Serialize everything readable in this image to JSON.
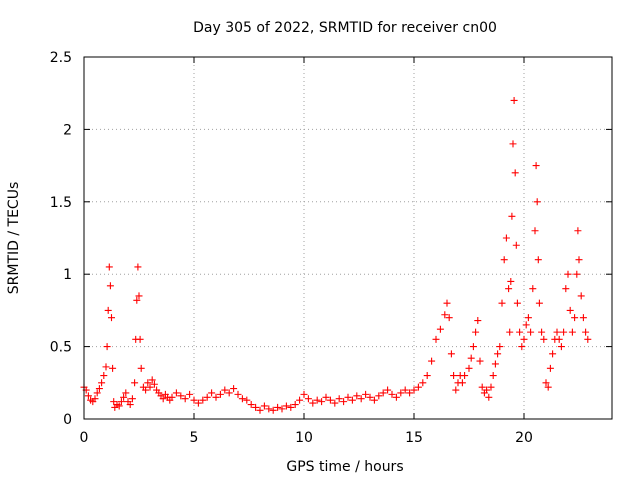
{
  "chart_data": {
    "type": "scatter",
    "title": "Day 305 of 2022, SRMTID for receiver cn00",
    "xlabel": "GPS time / hours",
    "ylabel": "SRMTID / TECUs",
    "xlim": [
      0,
      24
    ],
    "ylim": [
      0,
      2.5
    ],
    "xticks": [
      0,
      5,
      10,
      15,
      20
    ],
    "xtick_labels": [
      "0",
      "5",
      "10",
      "15",
      "20"
    ],
    "yticks": [
      0,
      0.5,
      1,
      1.5,
      2,
      2.5
    ],
    "ytick_labels": [
      "0",
      "0.5",
      "1",
      "1.5",
      "2",
      "2.5"
    ],
    "grid": true,
    "marker": "+",
    "color": "#ff0000",
    "series": [
      {
        "name": "SRMTID",
        "points": [
          [
            0.0,
            0.22
          ],
          [
            0.1,
            0.2
          ],
          [
            0.2,
            0.16
          ],
          [
            0.3,
            0.13
          ],
          [
            0.4,
            0.12
          ],
          [
            0.5,
            0.14
          ],
          [
            0.6,
            0.18
          ],
          [
            0.7,
            0.21
          ],
          [
            0.8,
            0.25
          ],
          [
            0.9,
            0.3
          ],
          [
            1.0,
            0.36
          ],
          [
            1.05,
            0.5
          ],
          [
            1.1,
            0.75
          ],
          [
            1.15,
            1.05
          ],
          [
            1.2,
            0.92
          ],
          [
            1.25,
            0.7
          ],
          [
            1.3,
            0.35
          ],
          [
            1.35,
            0.12
          ],
          [
            1.4,
            0.08
          ],
          [
            1.5,
            0.1
          ],
          [
            1.6,
            0.09
          ],
          [
            1.7,
            0.12
          ],
          [
            1.8,
            0.15
          ],
          [
            1.9,
            0.18
          ],
          [
            2.0,
            0.12
          ],
          [
            2.1,
            0.1
          ],
          [
            2.2,
            0.14
          ],
          [
            2.3,
            0.25
          ],
          [
            2.35,
            0.55
          ],
          [
            2.4,
            0.82
          ],
          [
            2.45,
            1.05
          ],
          [
            2.5,
            0.85
          ],
          [
            2.55,
            0.55
          ],
          [
            2.6,
            0.35
          ],
          [
            2.7,
            0.22
          ],
          [
            2.8,
            0.2
          ],
          [
            2.9,
            0.25
          ],
          [
            3.0,
            0.22
          ],
          [
            3.1,
            0.27
          ],
          [
            3.2,
            0.24
          ],
          [
            3.3,
            0.2
          ],
          [
            3.4,
            0.18
          ],
          [
            3.5,
            0.16
          ],
          [
            3.6,
            0.14
          ],
          [
            3.7,
            0.17
          ],
          [
            3.8,
            0.15
          ],
          [
            3.9,
            0.13
          ],
          [
            4.0,
            0.15
          ],
          [
            4.2,
            0.18
          ],
          [
            4.4,
            0.16
          ],
          [
            4.6,
            0.14
          ],
          [
            4.8,
            0.17
          ],
          [
            5.0,
            0.13
          ],
          [
            5.2,
            0.11
          ],
          [
            5.4,
            0.13
          ],
          [
            5.6,
            0.15
          ],
          [
            5.8,
            0.18
          ],
          [
            6.0,
            0.15
          ],
          [
            6.2,
            0.17
          ],
          [
            6.4,
            0.2
          ],
          [
            6.6,
            0.18
          ],
          [
            6.8,
            0.21
          ],
          [
            7.0,
            0.17
          ],
          [
            7.2,
            0.14
          ],
          [
            7.4,
            0.13
          ],
          [
            7.6,
            0.1
          ],
          [
            7.8,
            0.08
          ],
          [
            8.0,
            0.06
          ],
          [
            8.2,
            0.09
          ],
          [
            8.4,
            0.07
          ],
          [
            8.6,
            0.06
          ],
          [
            8.8,
            0.08
          ],
          [
            9.0,
            0.07
          ],
          [
            9.2,
            0.09
          ],
          [
            9.4,
            0.08
          ],
          [
            9.6,
            0.1
          ],
          [
            9.8,
            0.13
          ],
          [
            10.0,
            0.17
          ],
          [
            10.2,
            0.14
          ],
          [
            10.4,
            0.11
          ],
          [
            10.6,
            0.13
          ],
          [
            10.8,
            0.12
          ],
          [
            11.0,
            0.15
          ],
          [
            11.2,
            0.13
          ],
          [
            11.4,
            0.11
          ],
          [
            11.6,
            0.14
          ],
          [
            11.8,
            0.12
          ],
          [
            12.0,
            0.15
          ],
          [
            12.2,
            0.13
          ],
          [
            12.4,
            0.16
          ],
          [
            12.6,
            0.14
          ],
          [
            12.8,
            0.17
          ],
          [
            13.0,
            0.15
          ],
          [
            13.2,
            0.13
          ],
          [
            13.4,
            0.16
          ],
          [
            13.6,
            0.18
          ],
          [
            13.8,
            0.2
          ],
          [
            14.0,
            0.17
          ],
          [
            14.2,
            0.15
          ],
          [
            14.4,
            0.18
          ],
          [
            14.6,
            0.2
          ],
          [
            14.8,
            0.18
          ],
          [
            15.0,
            0.2
          ],
          [
            15.2,
            0.22
          ],
          [
            15.4,
            0.25
          ],
          [
            15.6,
            0.3
          ],
          [
            15.8,
            0.4
          ],
          [
            16.0,
            0.55
          ],
          [
            16.2,
            0.62
          ],
          [
            16.4,
            0.72
          ],
          [
            16.5,
            0.8
          ],
          [
            16.6,
            0.7
          ],
          [
            16.7,
            0.45
          ],
          [
            16.8,
            0.3
          ],
          [
            16.9,
            0.2
          ],
          [
            17.0,
            0.25
          ],
          [
            17.1,
            0.3
          ],
          [
            17.2,
            0.25
          ],
          [
            17.3,
            0.3
          ],
          [
            17.5,
            0.35
          ],
          [
            17.6,
            0.42
          ],
          [
            17.7,
            0.5
          ],
          [
            17.8,
            0.6
          ],
          [
            17.9,
            0.68
          ],
          [
            18.0,
            0.4
          ],
          [
            18.1,
            0.22
          ],
          [
            18.2,
            0.18
          ],
          [
            18.3,
            0.2
          ],
          [
            18.4,
            0.15
          ],
          [
            18.5,
            0.22
          ],
          [
            18.6,
            0.3
          ],
          [
            18.7,
            0.38
          ],
          [
            18.8,
            0.45
          ],
          [
            18.9,
            0.5
          ],
          [
            19.0,
            0.8
          ],
          [
            19.1,
            1.1
          ],
          [
            19.2,
            1.25
          ],
          [
            19.3,
            0.9
          ],
          [
            19.35,
            0.6
          ],
          [
            19.4,
            0.95
          ],
          [
            19.45,
            1.4
          ],
          [
            19.5,
            1.9
          ],
          [
            19.55,
            2.2
          ],
          [
            19.6,
            1.7
          ],
          [
            19.65,
            1.2
          ],
          [
            19.7,
            0.8
          ],
          [
            19.8,
            0.6
          ],
          [
            19.9,
            0.5
          ],
          [
            20.0,
            0.55
          ],
          [
            20.1,
            0.65
          ],
          [
            20.2,
            0.7
          ],
          [
            20.3,
            0.6
          ],
          [
            20.4,
            0.9
          ],
          [
            20.5,
            1.3
          ],
          [
            20.55,
            1.75
          ],
          [
            20.6,
            1.5
          ],
          [
            20.65,
            1.1
          ],
          [
            20.7,
            0.8
          ],
          [
            20.8,
            0.6
          ],
          [
            20.9,
            0.55
          ],
          [
            21.0,
            0.25
          ],
          [
            21.1,
            0.22
          ],
          [
            21.2,
            0.35
          ],
          [
            21.3,
            0.45
          ],
          [
            21.4,
            0.55
          ],
          [
            21.5,
            0.6
          ],
          [
            21.6,
            0.55
          ],
          [
            21.7,
            0.5
          ],
          [
            21.8,
            0.6
          ],
          [
            21.9,
            0.9
          ],
          [
            22.0,
            1.0
          ],
          [
            22.1,
            0.75
          ],
          [
            22.2,
            0.6
          ],
          [
            22.3,
            0.7
          ],
          [
            22.4,
            1.0
          ],
          [
            22.45,
            1.3
          ],
          [
            22.5,
            1.1
          ],
          [
            22.6,
            0.85
          ],
          [
            22.7,
            0.7
          ],
          [
            22.8,
            0.6
          ],
          [
            22.9,
            0.55
          ]
        ]
      }
    ]
  }
}
